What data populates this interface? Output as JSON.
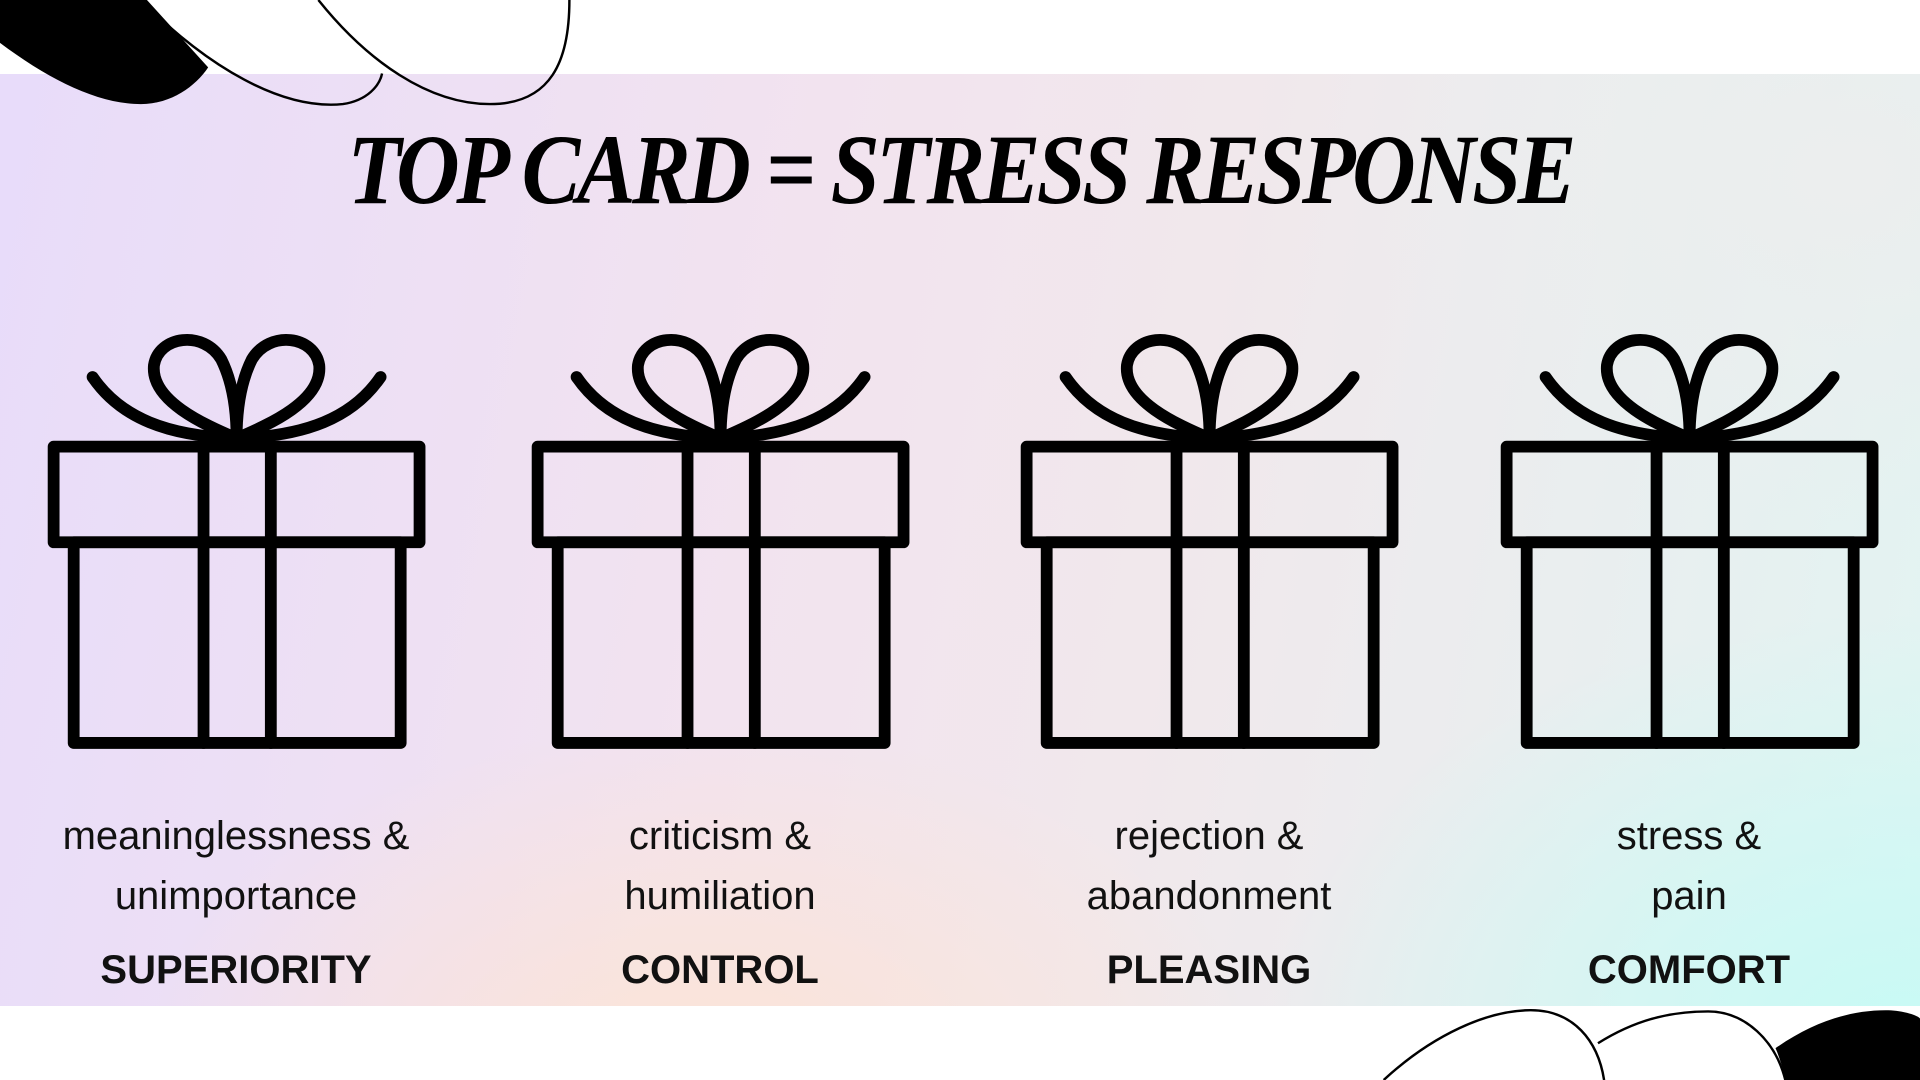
{
  "title": "TOP CARD = STRESS RESPONSE",
  "colors": {
    "band_start": "#e8dcfa",
    "band_end": "#ccf9f3",
    "ink": "#000000"
  },
  "cards": [
    {
      "icon": "gift-icon",
      "line1": "meaningless­ness &",
      "line2": "unimportance",
      "response": "SUPERIORITY"
    },
    {
      "icon": "gift-icon",
      "line1": "criticism &",
      "line2": "humiliation",
      "response": "CONTROL"
    },
    {
      "icon": "gift-icon",
      "line1": "rejection &",
      "line2": "abandonment",
      "response": "PLEASING"
    },
    {
      "icon": "gift-icon",
      "line1": "stress &",
      "line2": "pain",
      "response": "COMFORT"
    }
  ]
}
